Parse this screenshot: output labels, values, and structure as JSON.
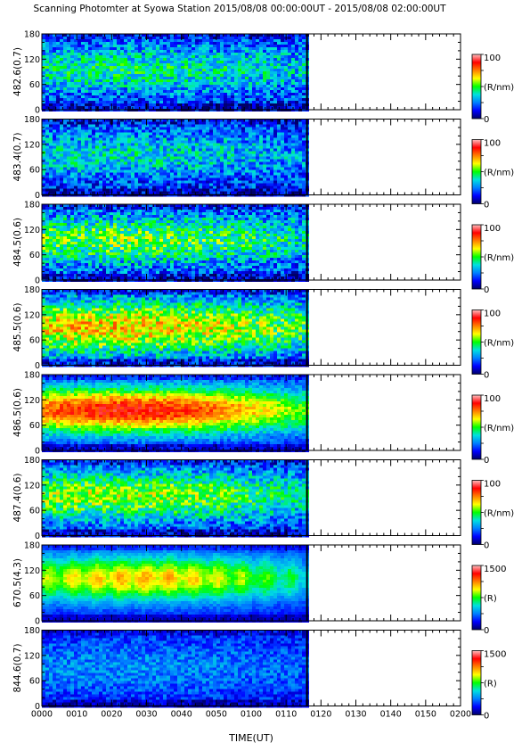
{
  "chart_data": {
    "type": "heatmap",
    "title": "Scanning Photomter at Syowa Station 2015/08/08 00:00:00UT - 2015/08/08 02:00:00UT",
    "xlabel": "TIME(UT)",
    "x_ticks": [
      "0000",
      "0010",
      "0020",
      "0030",
      "0040",
      "0050",
      "0100",
      "0110",
      "0120",
      "0130",
      "0140",
      "0150",
      "0200"
    ],
    "data_end_time": "0116",
    "y_ticks": [
      "0",
      "60",
      "120",
      "180"
    ],
    "ylim": [
      0,
      180
    ],
    "colorscale": [
      "#000066",
      "#0000ff",
      "#0080ff",
      "#00e0e0",
      "#00ff00",
      "#ffff00",
      "#ff8000",
      "#ff0000",
      "#ffc0c0"
    ],
    "panels": [
      {
        "label": "482.6(0.7)",
        "cbar_min": "0",
        "cbar_max": "100",
        "unit": "(R/nm)",
        "peak": 0.3,
        "center_time": 25,
        "center_y": 95,
        "y_sigma": 45,
        "t_sigma": 60,
        "noise": 0.3,
        "streaks": 0
      },
      {
        "label": "483.4(0.7)",
        "cbar_min": "0",
        "cbar_max": "100",
        "unit": "(R/nm)",
        "peak": 0.25,
        "center_time": 20,
        "center_y": 95,
        "y_sigma": 45,
        "t_sigma": 55,
        "noise": 0.3,
        "streaks": 0
      },
      {
        "label": "484.5(0.6)",
        "cbar_min": "0",
        "cbar_max": "100",
        "unit": "(R/nm)",
        "peak": 0.4,
        "center_time": 20,
        "center_y": 95,
        "y_sigma": 45,
        "t_sigma": 60,
        "noise": 0.32,
        "streaks": 0
      },
      {
        "label": "485.5(0.6)",
        "cbar_min": "0",
        "cbar_max": "100",
        "unit": "(R/nm)",
        "peak": 0.55,
        "center_time": 20,
        "center_y": 90,
        "y_sigma": 48,
        "t_sigma": 60,
        "noise": 0.3,
        "streaks": 0
      },
      {
        "label": "486.5(0.6)",
        "cbar_min": "0",
        "cbar_max": "100",
        "unit": "(R/nm)",
        "peak": 0.75,
        "center_time": 25,
        "center_y": 95,
        "y_sigma": 40,
        "t_sigma": 45,
        "noise": 0.15,
        "streaks": 0
      },
      {
        "label": "487.4(0.6)",
        "cbar_min": "0",
        "cbar_max": "100",
        "unit": "(R/nm)",
        "peak": 0.45,
        "center_time": 20,
        "center_y": 95,
        "y_sigma": 45,
        "t_sigma": 55,
        "noise": 0.28,
        "streaks": 0
      },
      {
        "label": "670.5(4.3)",
        "cbar_min": "0",
        "cbar_max": "1500",
        "unit": "(R)",
        "peak": 0.55,
        "center_time": 28,
        "center_y": 100,
        "y_sigma": 40,
        "t_sigma": 40,
        "noise": 0.08,
        "streaks": 1
      },
      {
        "label": "844.6(0.7)",
        "cbar_min": "0",
        "cbar_max": "1500",
        "unit": "(R)",
        "peak": 0.15,
        "center_time": 20,
        "center_y": 90,
        "y_sigma": 50,
        "t_sigma": 60,
        "noise": 0.18,
        "streaks": 0
      }
    ]
  }
}
